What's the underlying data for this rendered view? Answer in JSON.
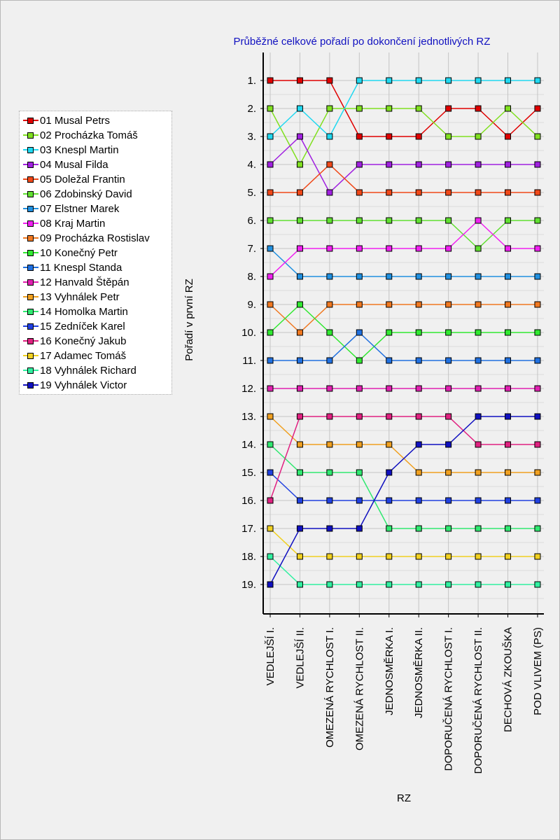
{
  "chart_data": {
    "type": "line",
    "title": "Průběžné celkové pořadí po dokončení jednotlivých RZ",
    "xlabel": "RZ",
    "ylabel": "Pořadí v první RZ",
    "categories": [
      "VEDLEJŠÍ I.",
      "VEDLEJŠÍ II.",
      "OMEZENÁ RYCHLOST I.",
      "OMEZENÁ RYCHLOST II.",
      "JEDNOSMĚRKA I.",
      "JEDNOSMĚRKA II.",
      "DOPORUČENÁ RYCHLOST I.",
      "DOPORUČENÁ RYCHLOST II.",
      "DECHOVÁ ZKOUŠKA",
      "POD VLIVEM (PS)"
    ],
    "y_ticks": [
      "1.",
      "2.",
      "3.",
      "4.",
      "5.",
      "6.",
      "7.",
      "8.",
      "9.",
      "10.",
      "11.",
      "12.",
      "13.",
      "14.",
      "15.",
      "16.",
      "17.",
      "18.",
      "19."
    ],
    "ylim": [
      0,
      19.5
    ],
    "y_inverted": true,
    "grid": true,
    "legend_position": "left",
    "series": [
      {
        "name": "01 Musal Petrs",
        "color": "#e00000",
        "values": [
          1,
          1,
          1,
          3,
          3,
          3,
          2,
          2,
          3,
          2
        ]
      },
      {
        "name": "02 Procházka Tomáš",
        "color": "#80e020",
        "values": [
          2,
          4,
          2,
          2,
          2,
          2,
          3,
          3,
          2,
          3
        ]
      },
      {
        "name": "03 Knespl Martin",
        "color": "#20d8f0",
        "values": [
          3,
          2,
          3,
          1,
          1,
          1,
          1,
          1,
          1,
          1
        ]
      },
      {
        "name": "04 Musal Filda",
        "color": "#a020e0",
        "values": [
          4,
          3,
          5,
          4,
          4,
          4,
          4,
          4,
          4,
          4
        ]
      },
      {
        "name": "05 Doležal Frantin",
        "color": "#f04818",
        "values": [
          5,
          5,
          4,
          5,
          5,
          5,
          5,
          5,
          5,
          5
        ]
      },
      {
        "name": "06 Zdobinský David",
        "color": "#60e030",
        "values": [
          6,
          6,
          6,
          6,
          6,
          6,
          6,
          7,
          6,
          6
        ]
      },
      {
        "name": "07 Elstner Marek",
        "color": "#2090e0",
        "values": [
          7,
          8,
          8,
          8,
          8,
          8,
          8,
          8,
          8,
          8
        ]
      },
      {
        "name": "08 Kraj Martin",
        "color": "#f020f0",
        "values": [
          8,
          7,
          7,
          7,
          7,
          7,
          7,
          6,
          7,
          7
        ]
      },
      {
        "name": "09 Procházka Rostislav",
        "color": "#f07820",
        "values": [
          9,
          10,
          9,
          9,
          9,
          9,
          9,
          9,
          9,
          9
        ]
      },
      {
        "name": "10 Konečný Petr",
        "color": "#30e830",
        "values": [
          10,
          9,
          10,
          11,
          10,
          10,
          10,
          10,
          10,
          10
        ]
      },
      {
        "name": "11 Knespl Standa",
        "color": "#2070e0",
        "values": [
          11,
          11,
          11,
          10,
          11,
          11,
          11,
          11,
          11,
          11
        ]
      },
      {
        "name": "12 Hanvald Štěpán",
        "color": "#e020b0",
        "values": [
          12,
          12,
          12,
          12,
          12,
          12,
          12,
          12,
          12,
          12
        ]
      },
      {
        "name": "13 Vyhnálek Petr",
        "color": "#f0a020",
        "values": [
          13,
          14,
          14,
          14,
          14,
          15,
          15,
          15,
          15,
          15
        ]
      },
      {
        "name": "14 Homolka Martin",
        "color": "#30e870",
        "values": [
          14,
          15,
          15,
          15,
          17,
          17,
          17,
          17,
          17,
          17
        ]
      },
      {
        "name": "15 Zedníček Karel",
        "color": "#2040e0",
        "values": [
          15,
          16,
          16,
          16,
          16,
          16,
          16,
          16,
          16,
          16
        ]
      },
      {
        "name": "16 Konečný Jakub",
        "color": "#e02080",
        "values": [
          16,
          13,
          13,
          13,
          13,
          13,
          13,
          14,
          14,
          14
        ]
      },
      {
        "name": "17 Adamec Tomáš",
        "color": "#f0d020",
        "values": [
          17,
          18,
          18,
          18,
          18,
          18,
          18,
          18,
          18,
          18
        ]
      },
      {
        "name": "18 Vyhnálek Richard",
        "color": "#30f0a0",
        "values": [
          18,
          19,
          19,
          19,
          19,
          19,
          19,
          19,
          19,
          19
        ]
      },
      {
        "name": "19 Vyhnálek Victor",
        "color": "#1010c0",
        "values": [
          19,
          17,
          17,
          17,
          15,
          14,
          14,
          13,
          13,
          13
        ]
      }
    ]
  }
}
